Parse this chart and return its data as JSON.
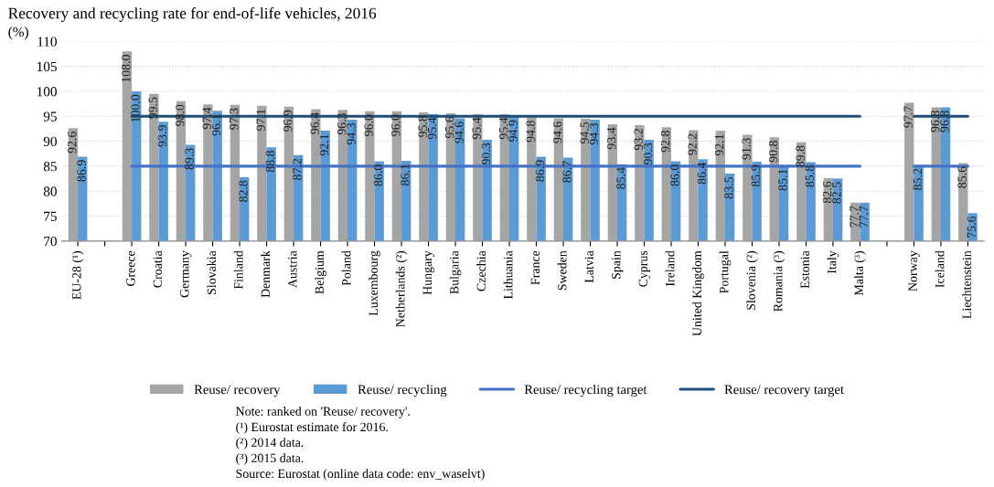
{
  "chart_data": {
    "type": "bar",
    "title": "Recovery and recycling rate for end-of-life vehicles, 2016",
    "ylabel": "(%)",
    "categories": [
      "EU-28 (¹)",
      null,
      "Greece",
      "Croatia",
      "Germany",
      "Slovakia",
      "Finland",
      "Denmark",
      "Austria",
      "Belgium",
      "Poland",
      "Luxembourg",
      "Netherlands (²)",
      "Hungary",
      "Bulgaria",
      "Czechia",
      "Lithuania",
      "France",
      "Sweden",
      "Latvia",
      "Spain",
      "Cyprus",
      "Ireland",
      "United Kingdom",
      "Portugal",
      "Slovenia (²)",
      "Romania (³)",
      "Estonia",
      "Italy",
      "Malta (³)",
      null,
      "Norway",
      "Iceland",
      "Liechtenstein"
    ],
    "series": [
      {
        "name": "Reuse/ recovery",
        "color": "#a5a5a5",
        "values": [
          92.6,
          null,
          108.0,
          99.5,
          98.0,
          97.4,
          97.3,
          97.1,
          96.9,
          96.4,
          96.3,
          96.0,
          96.0,
          95.8,
          95.6,
          95.4,
          95.4,
          94.8,
          94.6,
          94.5,
          93.4,
          93.2,
          92.8,
          92.2,
          92.1,
          91.3,
          90.8,
          89.8,
          82.6,
          77.7,
          null,
          97.7,
          96.8,
          85.6
        ],
        "value_labels": [
          "92.6",
          null,
          "108.0",
          "99.5",
          "98.0",
          "97.4",
          "97.3",
          "97.1",
          "96.9",
          "96.4",
          "96.3",
          "96.0",
          "96.0",
          "95.8",
          "95.6",
          "95.4",
          "95.4",
          "94.8",
          "94.6",
          "94.5",
          "93.4",
          "93.2",
          "92.8",
          "92.2",
          "92.1",
          "91.3",
          "90.8",
          "89.8",
          "82.6",
          "77.7",
          null,
          "97.7",
          "96.8",
          "85.6"
        ]
      },
      {
        "name": "Reuse/ recycling",
        "color": "#5b9bd5",
        "values": [
          86.9,
          null,
          100.0,
          93.9,
          89.3,
          96.1,
          82.8,
          88.8,
          87.2,
          92.1,
          94.3,
          86.0,
          86.1,
          95.4,
          94.6,
          90.3,
          94.9,
          86.9,
          86.7,
          94.3,
          85.4,
          90.3,
          86.0,
          86.4,
          83.5,
          85.9,
          85.1,
          85.8,
          82.5,
          77.7,
          null,
          85.2,
          96.8,
          75.6
        ],
        "value_labels": [
          "86.9",
          null,
          "100.0",
          "93.9",
          "89.3",
          "96.1",
          "82.8",
          "88.8",
          "87.2",
          "92.1",
          "94.3",
          "86.0",
          "86.1",
          "95.4",
          "94.6",
          "90.3",
          "94.9",
          "86.9",
          "86.7",
          "94.3",
          "85.4",
          "90.3",
          "86.0",
          "86.4",
          "83.5",
          "85.9",
          "85.1",
          "85.8",
          "82.5",
          "77.7",
          null,
          "85.2",
          "96.8",
          "75.6"
        ]
      },
      {
        "name": "Reuse/ recycling target",
        "type": "line",
        "color": "#4472c4",
        "values": [
          null,
          null,
          85,
          85,
          85,
          85,
          85,
          85,
          85,
          85,
          85,
          85,
          85,
          85,
          85,
          85,
          85,
          85,
          85,
          85,
          85,
          85,
          85,
          85,
          85,
          85,
          85,
          85,
          85,
          85,
          null,
          85,
          85,
          85
        ]
      },
      {
        "name": "Reuse/ recovery target",
        "type": "line",
        "color": "#1f4e79",
        "values": [
          null,
          null,
          95,
          95,
          95,
          95,
          95,
          95,
          95,
          95,
          95,
          95,
          95,
          95,
          95,
          95,
          95,
          95,
          95,
          95,
          95,
          95,
          95,
          95,
          95,
          95,
          95,
          95,
          95,
          95,
          null,
          95,
          95,
          95
        ]
      }
    ],
    "ylim": [
      70,
      110
    ],
    "yticks": [
      70,
      75,
      80,
      85,
      90,
      95,
      100,
      105,
      110
    ],
    "grid": "y",
    "legend": "bottom",
    "annotations": [
      "Note: ranked on 'Reuse/ recovery'.",
      "(¹) Eurostat estimate for 2016.",
      "(²) 2014 data.",
      "(³) 2015 data.",
      "Source: Eurostat (online data code: env_waselvt)"
    ]
  }
}
